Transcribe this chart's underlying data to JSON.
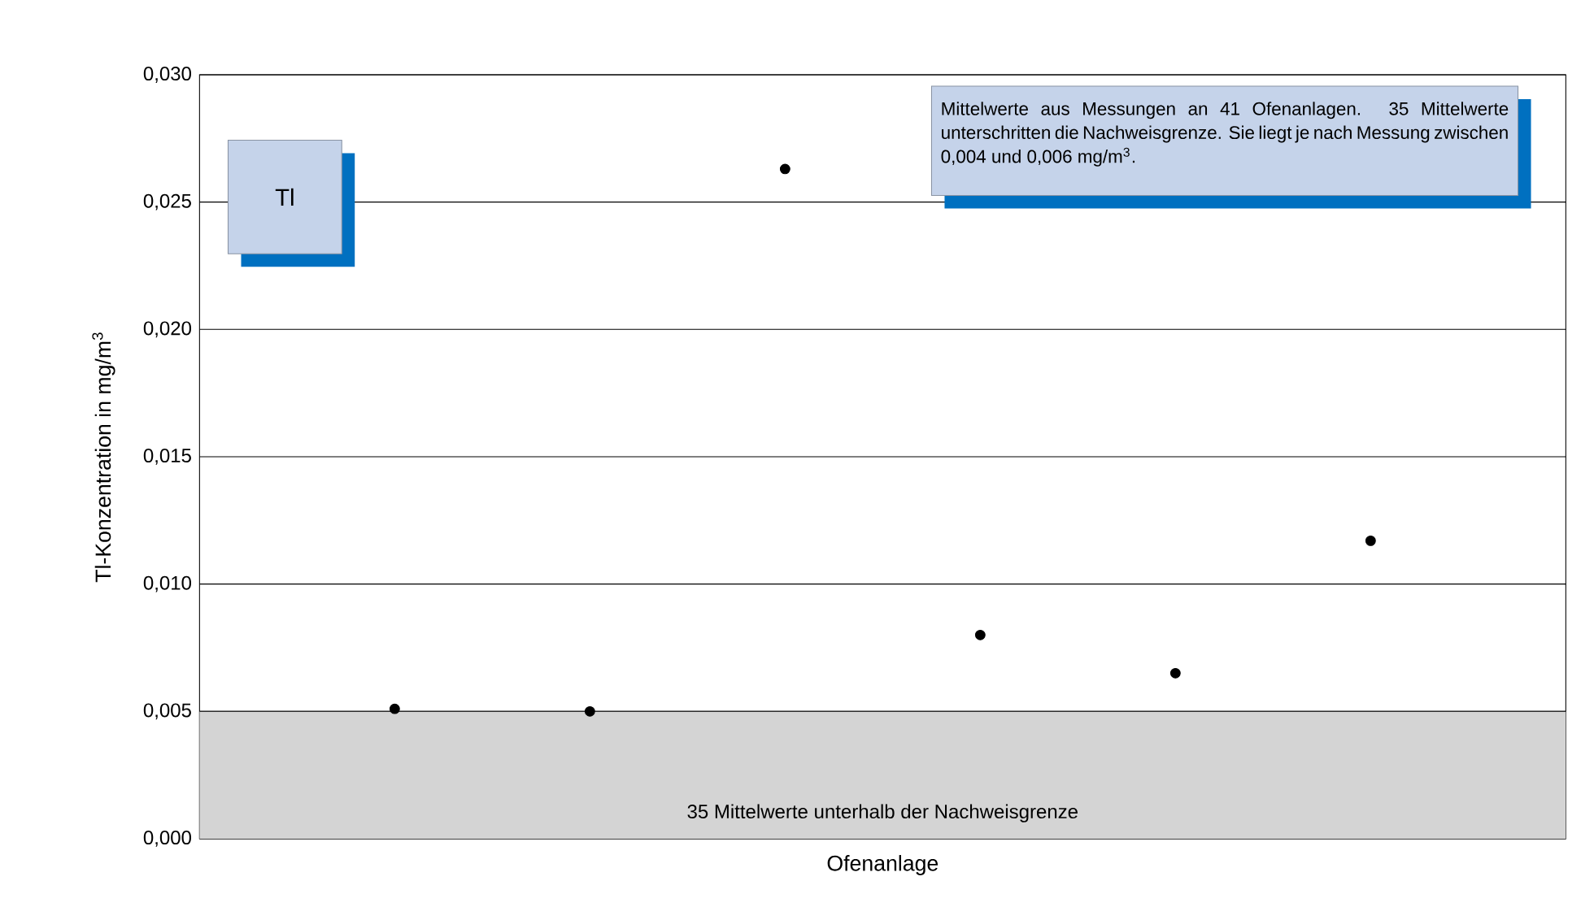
{
  "chart_data": {
    "type": "scatter",
    "xlabel": "Ofenanlage",
    "ylabel": "Tl-Konzentration in mg/m$^{3}$",
    "categories": [
      null,
      null,
      null,
      null,
      null,
      null
    ],
    "values": [
      0.0051,
      0.005,
      0.0263,
      0.008,
      0.0065,
      0.0117
    ],
    "color": "#000000",
    "grid": "y",
    "ylim": [
      0,
      0.03
    ],
    "yticks": [
      {
        "value": 0,
        "label": "0,000"
      },
      {
        "value": 0.005,
        "label": "0,005"
      },
      {
        "value": 0.01,
        "label": "0,010"
      },
      {
        "value": 0.015,
        "label": "0,015"
      },
      {
        "value": 0.02,
        "label": "0,020"
      },
      {
        "value": 0.025,
        "label": "0,025"
      },
      {
        "value": 0.03,
        "label": "0,030"
      }
    ],
    "bands": [
      {
        "axis": "y",
        "from": 0,
        "to": 0.005,
        "label": "35 Mittelwerte unterhalb der Nachweisgrenze",
        "color": "#d4d4d4"
      }
    ],
    "annotations": [
      "Tl",
      "Mittelwerte aus Messungen an 41 Ofenanlagen. 35 Mittelwerte unterschritten die Nachweisgrenze. Sie liegt je nach Messung zwischen 0,004 und 0,006 mg/m$^{3}$."
    ]
  }
}
